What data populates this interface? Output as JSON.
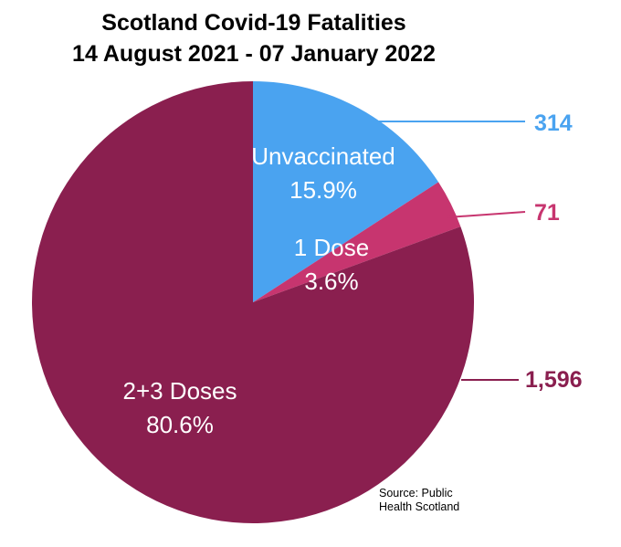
{
  "chart_data": {
    "type": "pie",
    "title": "Scotland Covid-19 Fatalities",
    "subtitle": "14 August 2021 - 07 January 2022",
    "slices": [
      {
        "label": "Unvaccinated",
        "percent_label": "15.9%",
        "value": 314,
        "value_label": "314",
        "color": "#4aa3f0",
        "label_color": "#4aa3f0"
      },
      {
        "label": "1 Dose",
        "percent_label": "3.6%",
        "value": 71,
        "value_label": "71",
        "color": "#c7356f",
        "label_color": "#c7356f"
      },
      {
        "label": "2+3 Doses",
        "percent_label": "80.6%",
        "value": 1596,
        "value_label": "1,596",
        "color": "#8a1f4f",
        "label_color": "#8a1f4f"
      }
    ],
    "source_line1": "Source: Public",
    "source_line2": "Health Scotland"
  }
}
